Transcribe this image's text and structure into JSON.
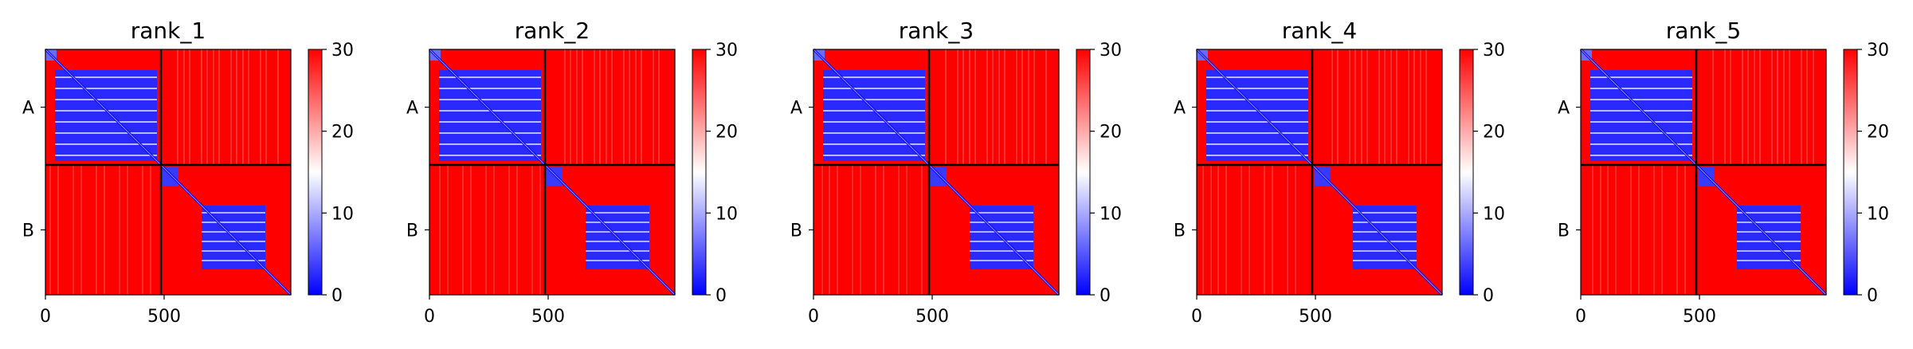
{
  "chart_data": {
    "type": "heatmap",
    "description_colormap": "bwr",
    "colors": {
      "low": "#0000ff",
      "mid": "#ffffff",
      "high": "#ff0000",
      "boundary": "#000000"
    },
    "chains": [
      {
        "label": "A",
        "start": 0,
        "end": 470
      },
      {
        "label": "B",
        "start": 470,
        "end": 1000
      }
    ],
    "xticks": [
      0,
      500
    ],
    "xlim": [
      0,
      1000
    ],
    "colorbar": {
      "ticks": [
        0,
        10,
        20,
        30
      ],
      "range": [
        0,
        30
      ]
    },
    "panels": [
      {
        "title": "rank_1"
      },
      {
        "title": "rank_2"
      },
      {
        "title": "rank_3"
      },
      {
        "title": "rank_4"
      },
      {
        "title": "rank_5"
      }
    ]
  }
}
